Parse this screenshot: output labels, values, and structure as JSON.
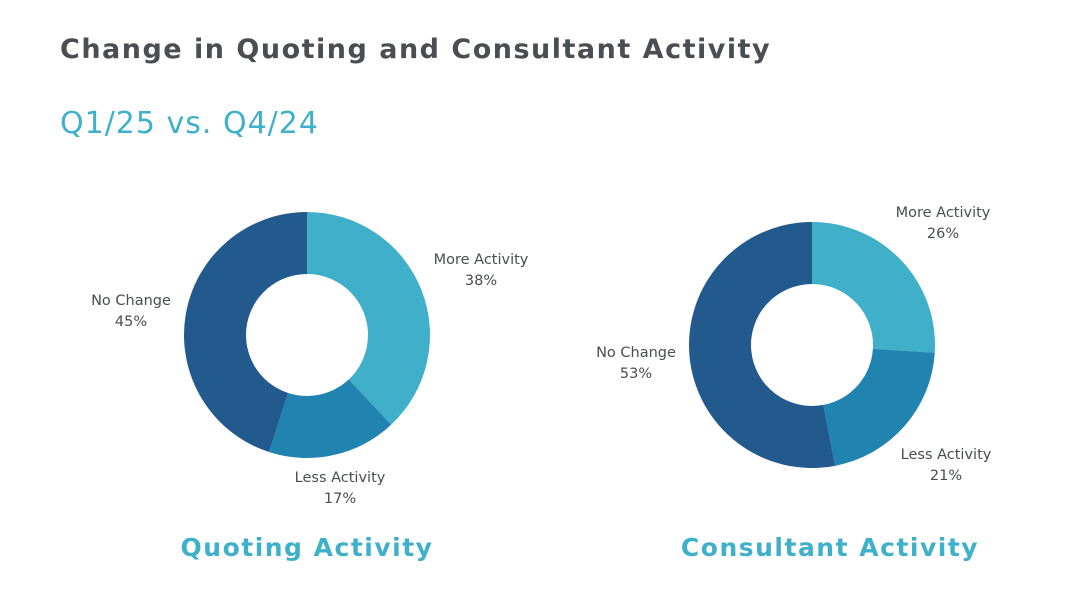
{
  "header": {
    "title": "Change in Quoting and Consultant Activity",
    "subtitle": "Q1/25 vs. Q4/24"
  },
  "chart_data": [
    {
      "type": "pie",
      "title": "Quoting Activity",
      "donut": true,
      "slices": [
        {
          "label": "More Activity",
          "value": 38,
          "display": "38%",
          "color": "#40afca"
        },
        {
          "label": "Less Activity",
          "value": 17,
          "display": "17%",
          "color": "#2183b0"
        },
        {
          "label": "No Change",
          "value": 45,
          "display": "45%",
          "color": "#225a8e"
        }
      ]
    },
    {
      "type": "pie",
      "title": "Consultant Activity",
      "donut": true,
      "slices": [
        {
          "label": "More Activity",
          "value": 26,
          "display": "26%",
          "color": "#40afca"
        },
        {
          "label": "Less Activity",
          "value": 21,
          "display": "21%",
          "color": "#2183b0"
        },
        {
          "label": "No Change",
          "value": 53,
          "display": "53%",
          "color": "#225a8e"
        }
      ]
    }
  ]
}
